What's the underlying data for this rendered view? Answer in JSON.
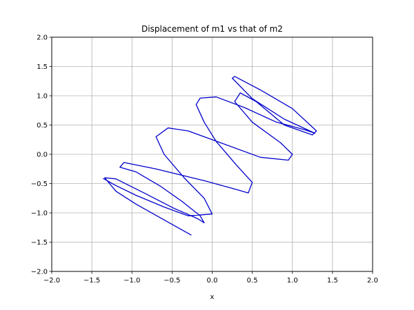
{
  "chart_data": {
    "type": "line",
    "title": "Displacement of m1 vs that of m2",
    "xlabel": "x",
    "ylabel": "",
    "xlim": [
      -2.0,
      2.0
    ],
    "ylim": [
      -2.0,
      2.0
    ],
    "xticks": [
      "−2.0",
      "−1.5",
      "−1.0",
      "−0.5",
      "0.0",
      "0.5",
      "1.0",
      "1.5",
      "2.0"
    ],
    "yticks": [
      "−2.0",
      "−1.5",
      "−1.0",
      "−0.5",
      "0.0",
      "0.5",
      "1.0",
      "1.5",
      "2.0"
    ],
    "grid": true,
    "line_color": "#0000cc",
    "series": [
      {
        "points": [
          [
            -0.26,
            -1.38
          ],
          [
            -0.6,
            -1.12
          ],
          [
            -0.95,
            -0.85
          ],
          [
            -1.2,
            -0.63
          ],
          [
            -1.34,
            -0.4
          ],
          [
            -1.2,
            -0.42
          ],
          [
            -0.82,
            -0.68
          ],
          [
            -0.48,
            -0.92
          ],
          [
            -0.18,
            -1.1
          ],
          [
            -0.1,
            -1.17
          ],
          [
            -0.15,
            -1.05
          ],
          [
            -0.38,
            -0.8
          ],
          [
            -0.65,
            -0.54
          ],
          [
            -0.95,
            -0.3
          ],
          [
            -1.15,
            -0.22
          ],
          [
            -1.1,
            -0.14
          ],
          [
            -0.7,
            -0.25
          ],
          [
            -0.1,
            -0.45
          ],
          [
            0.3,
            -0.6
          ],
          [
            0.45,
            -0.66
          ],
          [
            0.5,
            -0.48
          ],
          [
            0.3,
            -0.18
          ],
          [
            0.05,
            0.22
          ],
          [
            -0.1,
            0.55
          ],
          [
            -0.2,
            0.85
          ],
          [
            -0.15,
            0.96
          ],
          [
            0.05,
            0.98
          ],
          [
            0.4,
            0.8
          ],
          [
            0.8,
            0.55
          ],
          [
            1.15,
            0.42
          ],
          [
            1.28,
            0.36
          ],
          [
            0.9,
            0.6
          ],
          [
            0.5,
            0.95
          ],
          [
            0.25,
            1.3
          ],
          [
            0.28,
            1.33
          ],
          [
            0.6,
            1.1
          ],
          [
            1.0,
            0.78
          ],
          [
            1.3,
            0.4
          ],
          [
            1.25,
            0.33
          ],
          [
            0.9,
            0.5
          ],
          [
            0.55,
            0.9
          ],
          [
            0.35,
            1.05
          ],
          [
            0.28,
            0.9
          ],
          [
            0.5,
            0.55
          ],
          [
            0.85,
            0.2
          ],
          [
            1.0,
            0.0
          ],
          [
            0.95,
            -0.1
          ],
          [
            0.6,
            -0.05
          ],
          [
            0.1,
            0.2
          ],
          [
            -0.3,
            0.4
          ],
          [
            -0.55,
            0.45
          ],
          [
            -0.7,
            0.3
          ],
          [
            -0.6,
            0.0
          ],
          [
            -0.35,
            -0.4
          ],
          [
            -0.1,
            -0.75
          ],
          [
            0.0,
            -1.02
          ],
          [
            -0.3,
            -1.05
          ],
          [
            -0.6,
            -0.9
          ],
          [
            -0.95,
            -0.7
          ],
          [
            -1.22,
            -0.52
          ],
          [
            -1.36,
            -0.41
          ]
        ]
      }
    ]
  }
}
